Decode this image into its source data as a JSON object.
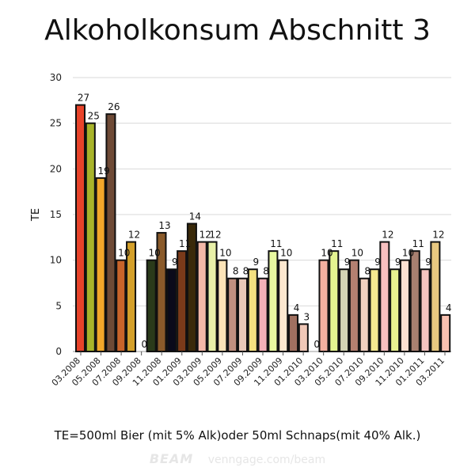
{
  "chart_data": {
    "type": "bar",
    "title": "Alkoholkonsum Abschnitt 3",
    "ylabel": "TE",
    "xlabel": "",
    "ylim": [
      0,
      30
    ],
    "yticks": [
      0,
      5,
      10,
      15,
      20,
      25,
      30
    ],
    "grid": true,
    "tick_labels": [
      "03.2008",
      "05.2008",
      "07.2008",
      "09.2008",
      "11.2008",
      "01.2009",
      "03.2009",
      "05.2009",
      "07.2009",
      "09.2009",
      "11.2009",
      "01.2010",
      "03.2010",
      "05.2010",
      "07.2010",
      "09.2010",
      "11.2010",
      "01.2011",
      "03.2011"
    ],
    "values": [
      27,
      25,
      19,
      26,
      10,
      12,
      0,
      10,
      13,
      9,
      11,
      14,
      12,
      12,
      10,
      8,
      8,
      9,
      8,
      11,
      10,
      4,
      3,
      0,
      10,
      11,
      9,
      10,
      8,
      9,
      12,
      9,
      10,
      11,
      9,
      12,
      4
    ],
    "colors": [
      "#e8432a",
      "#a8b42a",
      "#f2a72a",
      "#6e4a36",
      "#c8642a",
      "#d4a02a",
      "#ffffff",
      "#2a3a1a",
      "#8a5a2a",
      "#0a0a1a",
      "#7a3a1a",
      "#3a2a0a",
      "#f4b8a8",
      "#e8f0a8",
      "#fce4b8",
      "#c09080",
      "#e8c8b8",
      "#f4e080",
      "#f4b0b8",
      "#e8f8a0",
      "#fce8d0",
      "#a07060",
      "#f0c8b8",
      "#ffffff",
      "#f4b0a0",
      "#e4f490",
      "#d4d4b4",
      "#b48070",
      "#f0d0c0",
      "#f4e890",
      "#f8c0c0",
      "#e8f090",
      "#fce0d0",
      "#a88070",
      "#f4c4c0",
      "#e8c880",
      "#f8c0b0"
    ]
  },
  "footnote": "TE=500ml Bier (mit 5% Alk)oder 50ml Schnaps(mit 40% Alk.)",
  "watermark": {
    "brand": "BEAM",
    "url": "venngage.com/beam"
  }
}
